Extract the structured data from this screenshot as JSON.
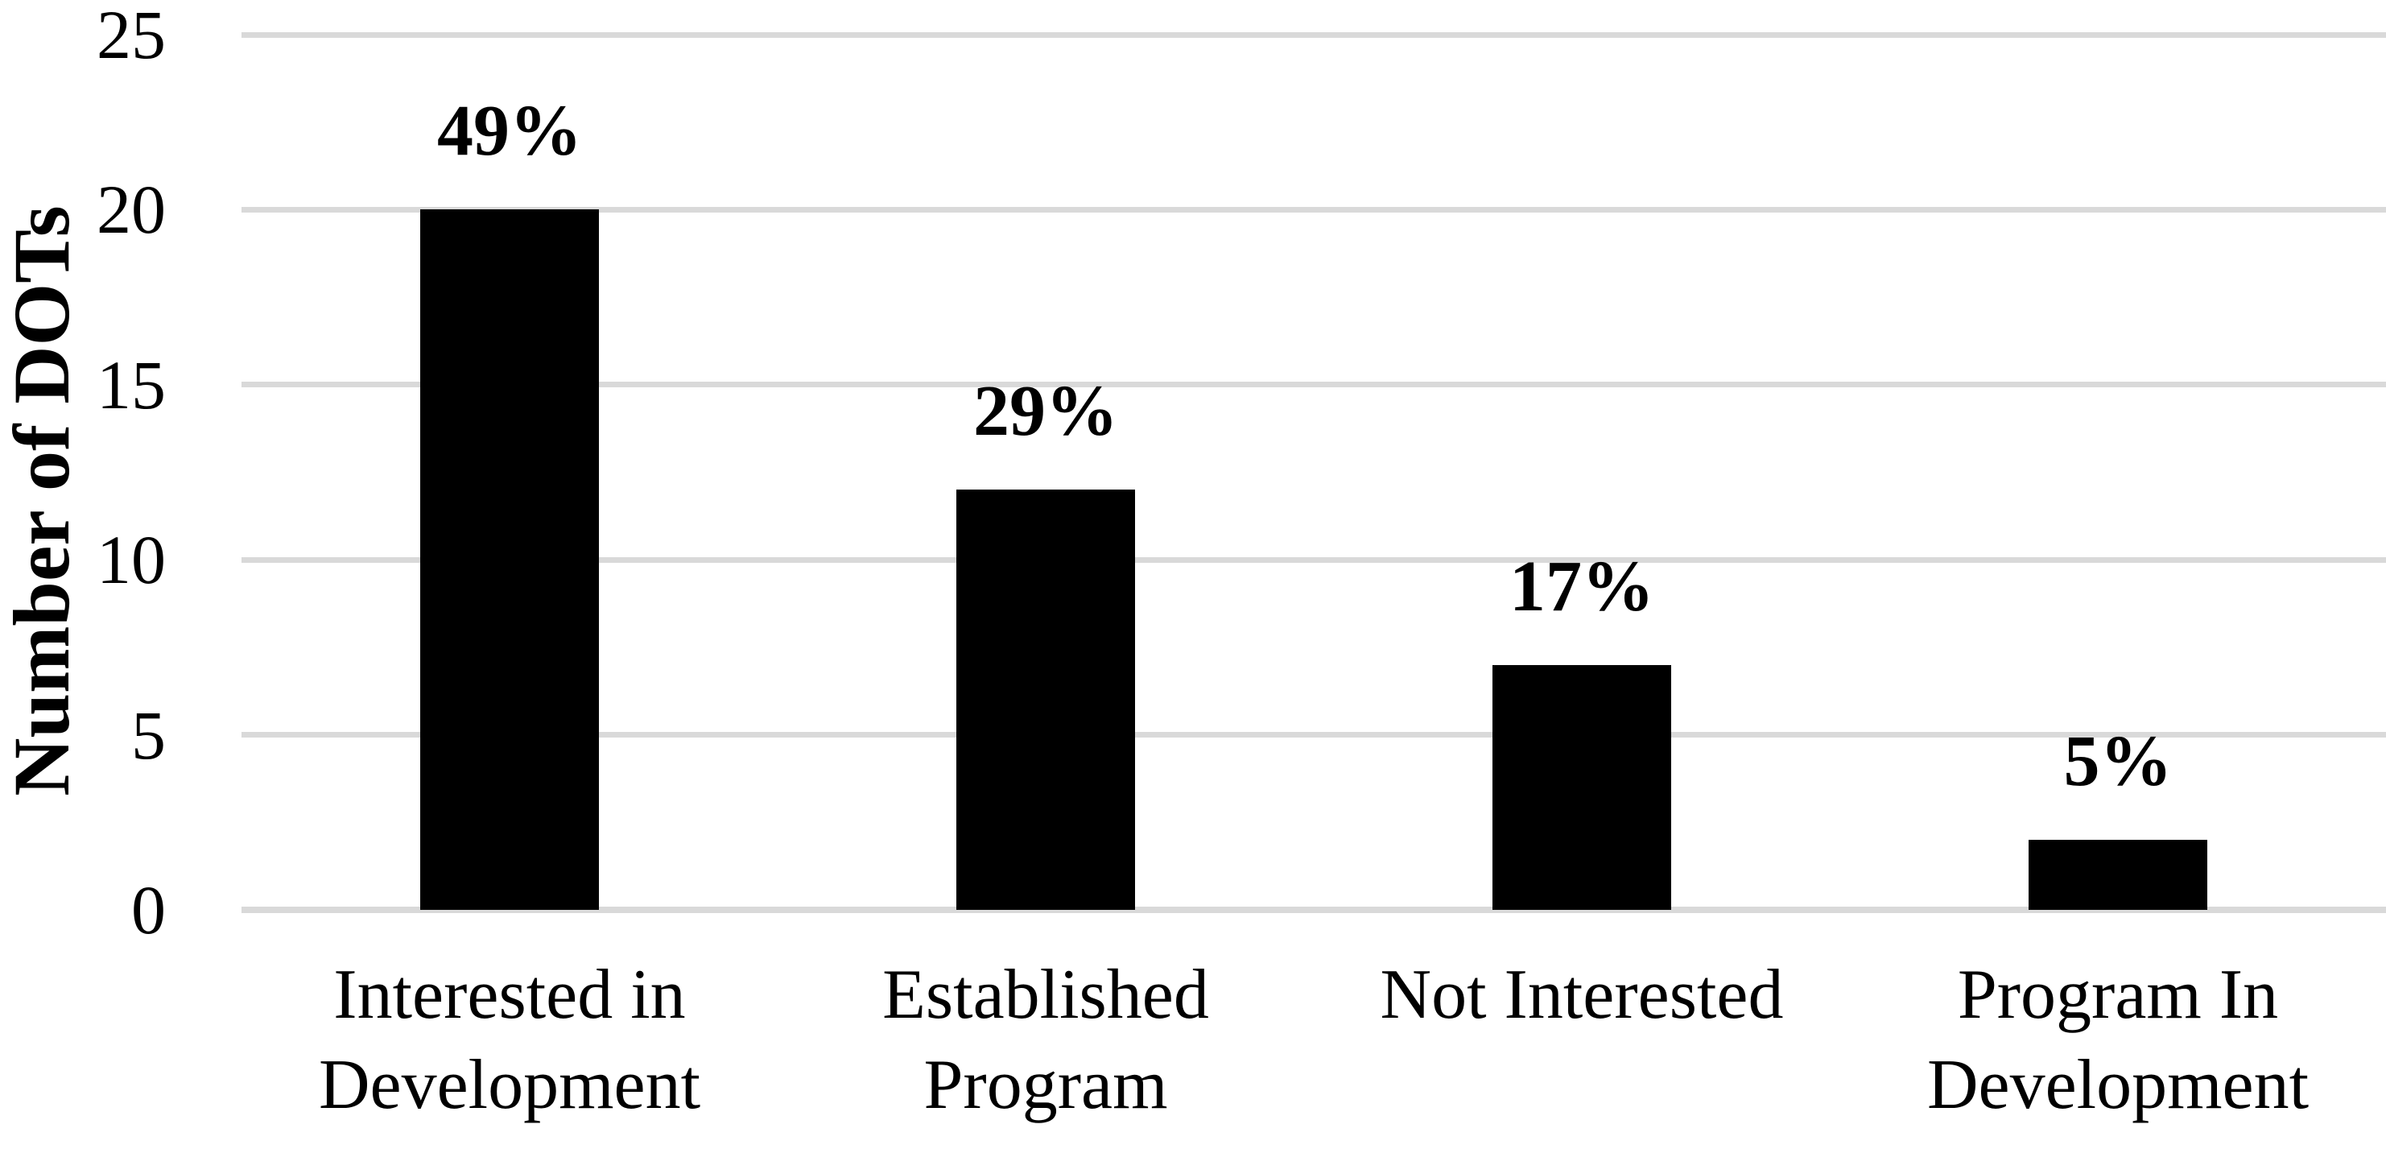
{
  "chart_data": {
    "type": "bar",
    "title": "",
    "ylabel": "Number of DOTs",
    "xlabel": "",
    "ylim": [
      0,
      25
    ],
    "yticks": [
      0,
      5,
      10,
      15,
      20,
      25
    ],
    "grid": "horizontal",
    "legend": "none",
    "background_color": "#ffffff",
    "bar_color": "#000000",
    "gridline_color": "#d9d9d9",
    "text_color": "#000000",
    "categories": [
      "Interested in Development",
      "Established Program",
      "Not Interested",
      "Program In Development"
    ],
    "category_label_lines": [
      [
        "Interested in",
        "Development"
      ],
      [
        "Established",
        "Program"
      ],
      [
        "Not Interested"
      ],
      [
        "Program In",
        "Development"
      ]
    ],
    "values": [
      20,
      12,
      7,
      2
    ],
    "bar_labels": [
      "49%",
      "29%",
      "17%",
      "5%"
    ]
  }
}
